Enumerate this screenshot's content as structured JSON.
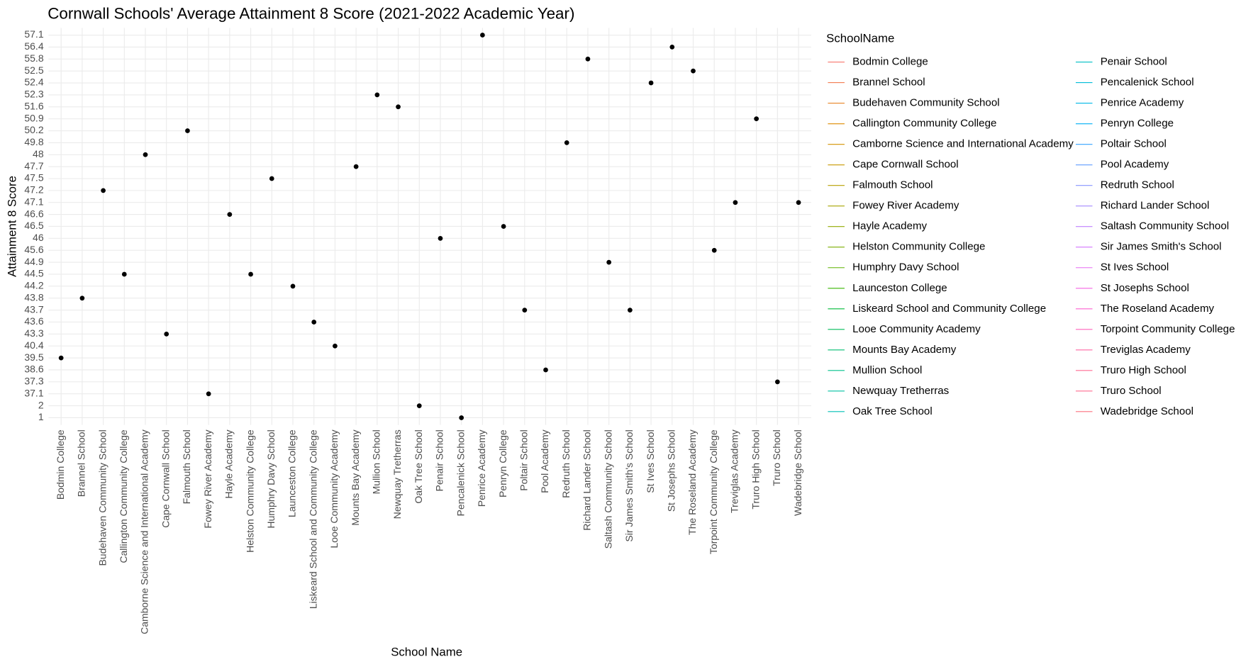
{
  "chart_data": {
    "type": "scatter",
    "title": "Cornwall Schools' Average Attainment 8 Score (2021-2022 Academic Year)",
    "x_label": "School Name",
    "y_label": "Attainment 8 Score",
    "categories": [
      "Bodmin College",
      "Brannel School",
      "Budehaven Community School",
      "Callington Community College",
      "Camborne Science and International Academy",
      "Cape Cornwall School",
      "Falmouth School",
      "Fowey River Academy",
      "Hayle Academy",
      "Helston Community College",
      "Humphry Davy School",
      "Launceston College",
      "Liskeard School and Community College",
      "Looe Community Academy",
      "Mounts Bay Academy",
      "Mullion School",
      "Newquay Tretherras",
      "Oak Tree School",
      "Penair School",
      "Pencalenick School",
      "Penrice Academy",
      "Penryn College",
      "Poltair School",
      "Pool Academy",
      "Redruth School",
      "Richard Lander School",
      "Saltash Community School",
      "Sir James Smith's School",
      "St Ives School",
      "St Josephs School",
      "The Roseland Academy",
      "Torpoint Community College",
      "Treviglas Academy",
      "Truro High School",
      "Truro School",
      "Wadebridge School"
    ],
    "values": [
      39.5,
      43.8,
      47.2,
      44.5,
      48,
      43.3,
      50.2,
      37.1,
      46.6,
      44.5,
      47.5,
      44.2,
      43.6,
      40.4,
      47.7,
      52.3,
      51.6,
      2,
      46,
      1,
      57.1,
      46.5,
      43.7,
      38.6,
      49.8,
      55.8,
      44.9,
      43.7,
      52.4,
      56.4,
      52.5,
      45.6,
      47.1,
      50.9,
      37.3,
      47.1
    ],
    "color": "#000000",
    "y_scale": "discrete",
    "yticks": [
      1,
      2,
      37.1,
      37.3,
      38.6,
      39.5,
      40.4,
      43.3,
      43.6,
      43.7,
      43.8,
      44.2,
      44.5,
      44.9,
      45.6,
      46,
      46.5,
      46.6,
      47.1,
      47.2,
      47.5,
      47.7,
      48,
      49.8,
      50.2,
      50.9,
      51.6,
      52.3,
      52.4,
      52.5,
      55.8,
      56.4,
      57.1
    ],
    "grid": true,
    "legend_title": "SchoolName",
    "legend_position": "right",
    "legend_colors": [
      "#F8766D",
      "#F27D52",
      "#E88526",
      "#DE8C00",
      "#D39200",
      "#C79800",
      "#B79F00",
      "#A7A500",
      "#93AA00",
      "#7CAE00",
      "#5EB300",
      "#39B600",
      "#00BA38",
      "#00BC59",
      "#00BE70",
      "#00C08B",
      "#00C0A3",
      "#00BFB5",
      "#00BFC4",
      "#00BCD8",
      "#00B8E7",
      "#00B0F6",
      "#35A2FF",
      "#619CFF",
      "#8794FF",
      "#A58AFF",
      "#BF80FF",
      "#D575FE",
      "#E76BF3",
      "#F564E3",
      "#FD61D1",
      "#FF62BC",
      "#FF67A4",
      "#FF6B94",
      "#FF6C91",
      "#FC717F"
    ]
  }
}
